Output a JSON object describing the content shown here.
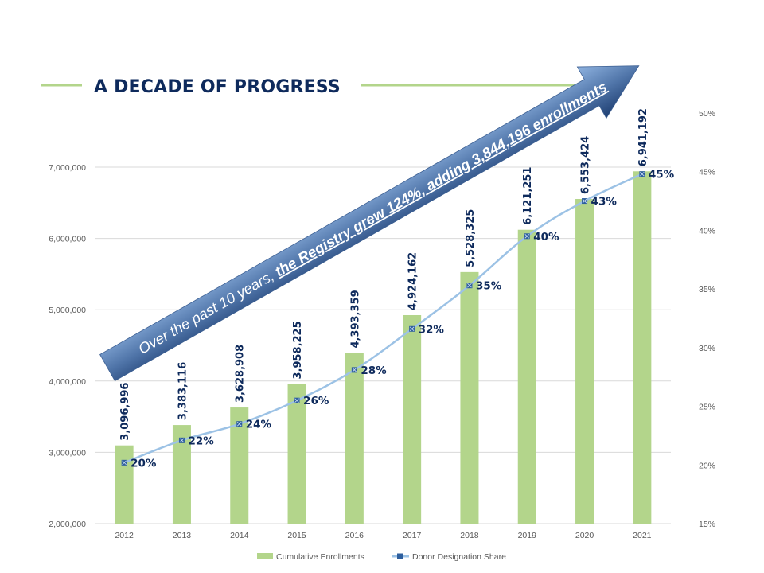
{
  "header": {
    "title": "A DECADE OF PROGRESS"
  },
  "callout": {
    "text_plain": "Over the past 10 years, ",
    "text_bold": "the Registry grew 124%, adding 3,844,196 enrollments"
  },
  "colors": {
    "bar": "#b3d58b",
    "line": "#9cc2e5",
    "marker": "#2e5f9e",
    "title": "#0e2a5c",
    "accent_rule": "#b3d58b",
    "grid": "#d9d9d9"
  },
  "chart_data": {
    "type": "bar",
    "title": "A DECADE OF PROGRESS",
    "categories": [
      "2012",
      "2013",
      "2014",
      "2015",
      "2016",
      "2017",
      "2018",
      "2019",
      "2020",
      "2021"
    ],
    "series": [
      {
        "name": "Cumulative Enrollments",
        "type": "bar",
        "axis": "left",
        "values": [
          3096996,
          3383116,
          3628908,
          3958225,
          4393359,
          4924162,
          5528325,
          6121251,
          6553424,
          6941192
        ],
        "labels": [
          "3,096,996",
          "3,383,116",
          "3,628,908",
          "3,958,225",
          "4,393,359",
          "4,924,162",
          "5,528,325",
          "6,121,251",
          "6,553,424",
          "6,941,192"
        ]
      },
      {
        "name": "Donor Designation Share",
        "type": "line",
        "axis": "right",
        "values": [
          20.2,
          22.1,
          23.5,
          25.5,
          28.1,
          31.6,
          35.3,
          39.5,
          42.5,
          44.8
        ],
        "labels": [
          "20%",
          "22%",
          "24%",
          "26%",
          "28%",
          "32%",
          "35%",
          "40%",
          "43%",
          "45%"
        ]
      }
    ],
    "y_left": {
      "range": [
        2000000,
        7000000
      ],
      "ticks": [
        2000000,
        3000000,
        4000000,
        5000000,
        6000000,
        7000000
      ],
      "tick_labels": [
        "2,000,000",
        "3,000,000",
        "4,000,000",
        "5,000,000",
        "6,000,000",
        "7,000,000"
      ]
    },
    "y_right": {
      "range": [
        15,
        50
      ],
      "ticks": [
        15,
        20,
        25,
        30,
        35,
        40,
        45,
        50
      ],
      "tick_labels": [
        "15%",
        "20%",
        "25%",
        "30%",
        "35%",
        "40%",
        "45%",
        "50%"
      ]
    },
    "xlabel": "",
    "ylabel": "",
    "grid": true,
    "legend": {
      "position": "bottom",
      "entries": [
        "Cumulative Enrollments",
        "Donor Designation Share"
      ]
    }
  }
}
